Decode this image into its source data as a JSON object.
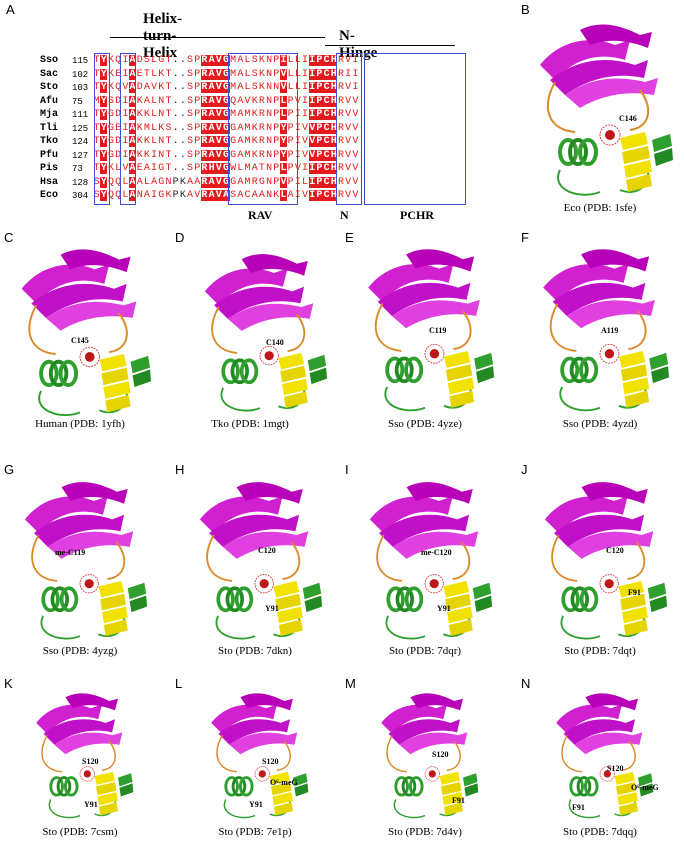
{
  "panels": {
    "A": "A",
    "B": "B",
    "C": "C",
    "D": "D",
    "E": "E",
    "F": "F",
    "G": "G",
    "H": "H",
    "I": "I",
    "J": "J",
    "K": "K",
    "L": "L",
    "M": "M",
    "N": "N"
  },
  "alignment": {
    "helix_label": "Helix-turn-Helix",
    "hinge_label": "N-Hinge",
    "motifs": [
      "RAV",
      "N",
      "PCHR"
    ],
    "rows": [
      {
        "sp": "Sso",
        "num": "115",
        "seq": "TYKQIADSLGT..SPRAVGMALSKNPILLIIPCHRVI"
      },
      {
        "sp": "Sac",
        "num": "102",
        "seq": "TYKEIAETLKT..SPRAVGMALSKNPVLLIIPCHRII"
      },
      {
        "sp": "Sto",
        "num": "103",
        "seq": "TYKQVADAVKT..SPRAVGMALSKNNVLLIIPCHRVI"
      },
      {
        "sp": "Afu",
        "num": "75",
        "seq": "MYSDIAKALNT..SPRAVGQAVKRNPLPVIIPCHRVV"
      },
      {
        "sp": "Mja",
        "num": "111",
        "seq": "TYGDIAKKLNT..SPRAVGMAMKRNPLPIIIPCHRVV"
      },
      {
        "sp": "Tli",
        "num": "125",
        "seq": "TYGEIAKMLKS..SPRAVGGAMKRNPYPIVVPCHRVV"
      },
      {
        "sp": "Tko",
        "num": "124",
        "seq": "TYGDIAKKLNT..SPRAVGGAMKRNPYPIVVPCHRVV"
      },
      {
        "sp": "Pfu",
        "num": "127",
        "seq": "TYGDIAKKINT..SPRAVGGAMKRNPYPIVVPCHRVV"
      },
      {
        "sp": "Pis",
        "num": "73",
        "seq": "TYKLVAEAIGT..SPRHVGWLMATNPLPVIIPCHRVV"
      },
      {
        "sp": "Hsa",
        "num": "128",
        "seq": "SYQQLAALAGNPKAARAVGGAMRGNPVPILIPCHRVV"
      },
      {
        "sp": "Eco",
        "num": "304",
        "seq": "SYQQLANAIGKPKAVRAVASACAANKLAIVIPCHRVV"
      }
    ]
  },
  "captions": {
    "B": "Eco (PDB: 1sfe)",
    "C": "Human (PDB: 1yfh)",
    "D": "Tko (PDB: 1mgt)",
    "E": "Sso (PDB: 4yze)",
    "F": "Sso (PDB: 4yzd)",
    "G": "Sso (PDB: 4yzg)",
    "H": "Sto (PDB: 7dkn)",
    "I": "Sto (PDB: 7dqr)",
    "J": "Sto (PDB: 7dqt)",
    "K": "Sto (PDB: 7csm)",
    "L": "Sto (PDB: 7e1p)",
    "M": "Sto (PDB: 7d4v)",
    "N": "Sto (PDB: 7dqq)"
  },
  "residue_labels": {
    "B": "C146",
    "C": "C145",
    "D": "C140",
    "E": "C119",
    "F": "A119",
    "G": "me-C119",
    "H": [
      "C120",
      "Y91"
    ],
    "I": [
      "me-C120",
      "Y91"
    ],
    "J": [
      "C120",
      "F91"
    ],
    "K": [
      "S120",
      "Y91"
    ],
    "L": [
      "S120",
      "O⁶-meG",
      "Y91"
    ],
    "M": [
      "S120",
      "F91"
    ],
    "N": [
      "S120",
      "O⁶-meG",
      "F91"
    ]
  },
  "colors": {
    "sheet": "#d020d0",
    "helix_green": "#2fa02f",
    "helix_yellow": "#f2e200",
    "loop_orange": "#d98a2b",
    "align_red": "#e41a1c",
    "box_blue": "#3b4fd0"
  }
}
